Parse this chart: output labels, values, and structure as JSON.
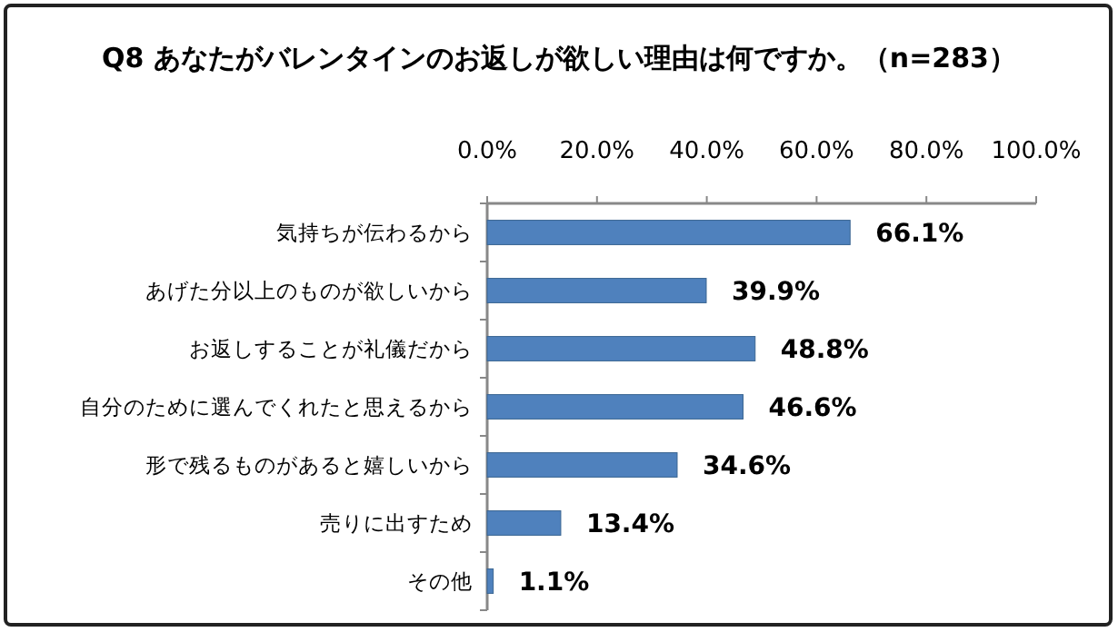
{
  "chart_data": {
    "type": "bar",
    "orientation": "horizontal",
    "title": "Q8 あなたがバレンタインのお返しが欲しい理由は何ですか。（n=283）",
    "categories": [
      "気持ちが伝わるから",
      "あげた分以上のものが欲しいから",
      "お返しすることが礼儀だから",
      "自分のために選んでくれたと思えるから",
      "形で残るものがあると嬉しいから",
      "売りに出すため",
      "その他"
    ],
    "values": [
      66.1,
      39.9,
      48.8,
      46.6,
      34.6,
      13.4,
      1.1
    ],
    "color": "#4f81bd",
    "xlim": [
      0,
      100
    ],
    "xticks": [
      {
        "value": 0,
        "label": "0.0%"
      },
      {
        "value": 20,
        "label": "20.0%"
      },
      {
        "value": 40,
        "label": "40.0%"
      },
      {
        "value": 60,
        "label": "60.0%"
      },
      {
        "value": 80,
        "label": "80.0%"
      },
      {
        "value": 100,
        "label": "100.0%"
      }
    ],
    "value_labels": [
      "66.1%",
      "39.9%",
      "48.8%",
      "46.6%",
      "34.6%",
      "13.4%",
      "1.1%"
    ]
  }
}
